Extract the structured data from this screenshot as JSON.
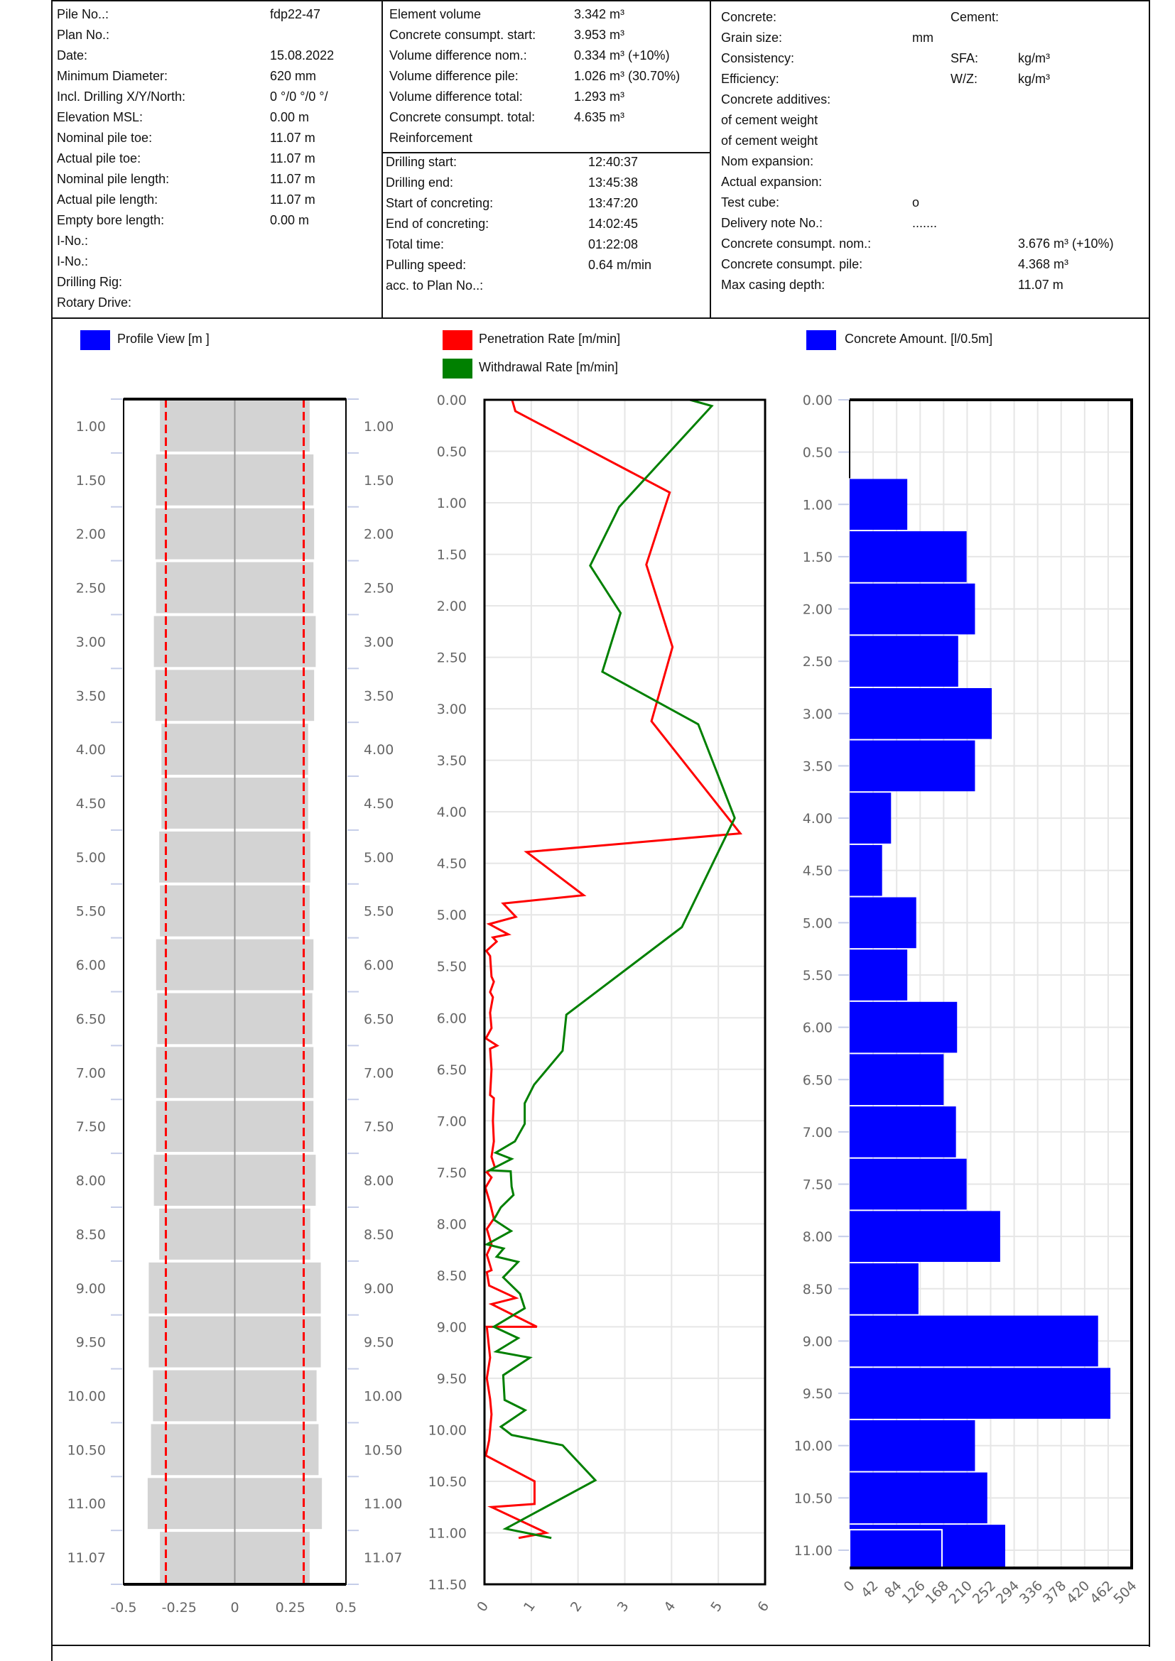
{
  "header": {
    "left": [
      {
        "label": "Pile No..:",
        "value": "fdp22-47"
      },
      {
        "label": "Plan No.:",
        "value": ""
      },
      {
        "label": "Date:",
        "value": "15.08.2022"
      },
      {
        "label": "Minimum Diameter:",
        "value": "620 mm"
      },
      {
        "label": "Incl. Drilling X/Y/North:",
        "value": "0 °/0 °/0 °/"
      },
      {
        "label": "Elevation MSL:",
        "value": "0.00 m"
      },
      {
        "label": "Nominal pile toe:",
        "value": "11.07 m"
      },
      {
        "label": "Actual pile toe:",
        "value": "11.07 m"
      },
      {
        "label": "Nominal pile length:",
        "value": "11.07 m"
      },
      {
        "label": "Actual pile length:",
        "value": "11.07 m"
      },
      {
        "label": "Empty bore length:",
        "value": "0.00 m"
      },
      {
        "label": "I-No.:",
        "value": ""
      },
      {
        "label": "I-No.:",
        "value": ""
      },
      {
        "label": "Drilling Rig:",
        "value": ""
      },
      {
        "label": "Rotary Drive:",
        "value": ""
      }
    ],
    "middle_top": [
      {
        "label": "Element volume",
        "value": "3.342 m³"
      },
      {
        "label": "Concrete consumpt. start:",
        "value": "3.953 m³"
      },
      {
        "label": "Volume difference nom.:",
        "value": "0.334 m³ (+10%)"
      },
      {
        "label": "Volume difference pile:",
        "value": "1.026 m³ (30.70%)"
      },
      {
        "label": "Volume difference total:",
        "value": "1.293 m³"
      },
      {
        "label": "Concrete consumpt. total:",
        "value": "4.635 m³"
      },
      {
        "label": "Reinforcement",
        "value": ""
      }
    ],
    "middle_bottom": [
      {
        "label": "Drilling start:",
        "value": "12:40:37"
      },
      {
        "label": "Drilling end:",
        "value": "13:45:38"
      },
      {
        "label": "Start of concreting:",
        "value": "13:47:20"
      },
      {
        "label": "End of concreting:",
        "value": "14:02:45"
      },
      {
        "label": "Total time:",
        "value": "01:22:08"
      },
      {
        "label": "Pulling speed:",
        "value": "0.64 m/min"
      },
      {
        "label": "acc. to Plan No..:",
        "value": ""
      }
    ],
    "right": [
      {
        "label": "Concrete:",
        "c2": "",
        "c3": "Cement:",
        "c4": ""
      },
      {
        "label": "Grain size:",
        "c2": "mm",
        "c3": "",
        "c4": ""
      },
      {
        "label": "Consistency:",
        "c2": "",
        "c3": "SFA:",
        "c4": "kg/m³"
      },
      {
        "label": "Efficiency:",
        "c2": "",
        "c3": "W/Z:",
        "c4": "kg/m³"
      },
      {
        "label": "Concrete additives:",
        "c2": "",
        "c3": "",
        "c4": ""
      },
      {
        "label": "of cement weight",
        "c2": "",
        "c3": "",
        "c4": ""
      },
      {
        "label": "of cement weight",
        "c2": "",
        "c3": "",
        "c4": ""
      },
      {
        "label": "Nom expansion:",
        "c2": "",
        "c3": "",
        "c4": ""
      },
      {
        "label": "Actual expansion:",
        "c2": "",
        "c3": "",
        "c4": ""
      },
      {
        "label": "Test cube:",
        "c2": "o",
        "c3": "",
        "c4": ""
      },
      {
        "label": "Delivery note No.:",
        "c2": ".......",
        "c3": "",
        "c4": ""
      },
      {
        "label": "Concrete consumpt. nom.:",
        "c2": "",
        "c3": "",
        "c4": "3.676 m³ (+10%)"
      },
      {
        "label": "Concrete consumpt. pile:",
        "c2": "",
        "c3": "",
        "c4": "4.368 m³"
      },
      {
        "label": "Max casing depth:",
        "c2": "",
        "c3": "",
        "c4": "11.07 m"
      }
    ]
  },
  "legends": {
    "profile": {
      "label": "Profile View [m ]",
      "color": "#0000ff"
    },
    "penetration": {
      "label": "Penetration Rate [m/min]",
      "color": "#ff0000"
    },
    "withdrawal": {
      "label": "Withdrawal Rate [m/min]",
      "color": "#008000"
    },
    "concrete": {
      "label": "Concrete Amount. [l/0.5m]",
      "color": "#0000ff"
    }
  },
  "chart_data": [
    {
      "type": "bar",
      "title": "Profile View [m ]",
      "xlim": [
        -0.5,
        0.5
      ],
      "x_ticks": [
        "-0.5",
        "-0.25",
        "0",
        "0.25",
        "0.5"
      ],
      "x_tick_values": [
        -0.5,
        -0.25,
        0,
        0.25,
        0.5
      ],
      "design_radius": 0.31,
      "depth_labels": [
        "1.00",
        "1.50",
        "2.00",
        "2.50",
        "3.00",
        "3.50",
        "4.00",
        "4.50",
        "5.00",
        "5.50",
        "6.00",
        "6.50",
        "7.00",
        "7.50",
        "8.00",
        "8.50",
        "9.00",
        "9.50",
        "10.00",
        "10.50",
        "11.00",
        "11.07"
      ],
      "radius": [
        0.34,
        0.357,
        0.36,
        0.357,
        0.367,
        0.36,
        0.333,
        0.333,
        0.343,
        0.34,
        0.357,
        0.352,
        0.357,
        0.357,
        0.367,
        0.343,
        0.39,
        0.39,
        0.371,
        0.38,
        0.395,
        0.34
      ],
      "fill": "#d3d3d3",
      "design_color": "#ff0000"
    },
    {
      "type": "line",
      "xlim": [
        0,
        6
      ],
      "ylim": [
        0,
        11.5
      ],
      "x_ticks": [
        "0",
        "1",
        "2",
        "3",
        "4",
        "5",
        "6"
      ],
      "y_ticks": [
        "0.00",
        "0.50",
        "1.00",
        "1.50",
        "2.00",
        "2.50",
        "3.00",
        "3.50",
        "4.00",
        "4.50",
        "5.00",
        "5.50",
        "6.00",
        "6.50",
        "7.00",
        "7.50",
        "8.00",
        "8.50",
        "9.00",
        "9.50",
        "10.00",
        "10.50",
        "11.00",
        "11.50"
      ],
      "series": [
        {
          "name": "Penetration Rate [m/min]",
          "color": "#ff0000",
          "points": [
            [
              0.59,
              0
            ],
            [
              0.66,
              0.11
            ],
            [
              3.96,
              0.9
            ],
            [
              3.46,
              1.6
            ],
            [
              4.02,
              2.4
            ],
            [
              3.57,
              3.12
            ],
            [
              5.47,
              4.21
            ],
            [
              0.9,
              4.39
            ],
            [
              2.12,
              4.81
            ],
            [
              0.4,
              4.89
            ],
            [
              0.67,
              5.02
            ],
            [
              0.1,
              5.09
            ],
            [
              0.51,
              5.19
            ],
            [
              0.18,
              5.22
            ],
            [
              0.26,
              5.26
            ],
            [
              0.04,
              5.35
            ],
            [
              0.12,
              5.4
            ],
            [
              0.15,
              5.6
            ],
            [
              0.2,
              5.65
            ],
            [
              0.12,
              5.75
            ],
            [
              0.18,
              5.8
            ],
            [
              0.12,
              5.95
            ],
            [
              0.15,
              6.1
            ],
            [
              0.03,
              6.2
            ],
            [
              0.27,
              6.27
            ],
            [
              0.12,
              6.3
            ],
            [
              0.15,
              6.5
            ],
            [
              0.12,
              6.75
            ],
            [
              0.2,
              6.78
            ],
            [
              0.18,
              7.0
            ],
            [
              0.2,
              7.2
            ],
            [
              0.15,
              7.35
            ],
            [
              0.22,
              7.45
            ],
            [
              0.05,
              7.5
            ],
            [
              0.15,
              7.55
            ],
            [
              0.02,
              7.65
            ],
            [
              0.12,
              7.8
            ],
            [
              0.2,
              7.95
            ],
            [
              0.05,
              8.05
            ],
            [
              0.15,
              8.2
            ],
            [
              0.05,
              8.3
            ],
            [
              0.15,
              8.45
            ],
            [
              0.05,
              8.47
            ],
            [
              0.1,
              8.6
            ],
            [
              0.67,
              8.72
            ],
            [
              0.15,
              8.78
            ],
            [
              1.12,
              9.0
            ],
            [
              0.05,
              9.0
            ],
            [
              0.12,
              9.3
            ],
            [
              0.05,
              9.5
            ],
            [
              0.12,
              9.7
            ],
            [
              0.15,
              9.85
            ],
            [
              0.1,
              10.1
            ],
            [
              0.03,
              10.25
            ],
            [
              1.07,
              10.5
            ],
            [
              1.07,
              10.72
            ],
            [
              0.15,
              10.75
            ],
            [
              1.32,
              11.0
            ],
            [
              0.73,
              11.05
            ]
          ]
        },
        {
          "name": "Withdrawal Rate [m/min]",
          "color": "#008000",
          "points": [
            [
              4.39,
              0
            ],
            [
              4.86,
              0.06
            ],
            [
              2.88,
              1.04
            ],
            [
              2.26,
              1.61
            ],
            [
              2.91,
              2.07
            ],
            [
              2.52,
              2.64
            ],
            [
              4.57,
              3.15
            ],
            [
              5.35,
              4.06
            ],
            [
              4.22,
              5.12
            ],
            [
              1.75,
              5.97
            ],
            [
              1.67,
              6.32
            ],
            [
              1.06,
              6.65
            ],
            [
              0.86,
              6.83
            ],
            [
              0.86,
              7.03
            ],
            [
              0.65,
              7.2
            ],
            [
              0.24,
              7.31
            ],
            [
              0.58,
              7.37
            ],
            [
              0.11,
              7.48
            ],
            [
              0.56,
              7.49
            ],
            [
              0.58,
              7.64
            ],
            [
              0.62,
              7.72
            ],
            [
              0.35,
              7.84
            ],
            [
              0.2,
              7.96
            ],
            [
              0.57,
              8.07
            ],
            [
              0.05,
              8.2
            ],
            [
              0.41,
              8.24
            ],
            [
              0.26,
              8.32
            ],
            [
              0.72,
              8.37
            ],
            [
              0.4,
              8.52
            ],
            [
              0.76,
              8.68
            ],
            [
              0.86,
              8.82
            ],
            [
              0.2,
              9.0
            ],
            [
              0.72,
              9.11
            ],
            [
              0.25,
              9.24
            ],
            [
              0.97,
              9.3
            ],
            [
              0.4,
              9.47
            ],
            [
              0.43,
              9.71
            ],
            [
              0.87,
              9.81
            ],
            [
              0.35,
              9.97
            ],
            [
              0.58,
              10.05
            ],
            [
              1.67,
              10.15
            ],
            [
              2.37,
              10.49
            ],
            [
              0.45,
              10.96
            ],
            [
              1.43,
              11.05
            ]
          ]
        }
      ]
    },
    {
      "type": "bar",
      "title": "Concrete Amount. [l/0.5m]",
      "xlim": [
        0,
        504
      ],
      "ylim": [
        0,
        11.17
      ],
      "x_ticks": [
        "0",
        "42",
        "84",
        "126",
        "168",
        "210",
        "252",
        "294",
        "336",
        "378",
        "420",
        "462",
        "504"
      ],
      "y_ticks": [
        "0.00",
        "0.50",
        "1.00",
        "1.50",
        "2.00",
        "2.50",
        "3.00",
        "3.50",
        "4.00",
        "4.50",
        "5.00",
        "5.50",
        "6.00",
        "6.50",
        "7.00",
        "7.50",
        "8.00",
        "8.50",
        "9.00",
        "9.50",
        "10.00",
        "10.50",
        "11.00"
      ],
      "bar_start_depths": [
        0.75,
        1.25,
        1.75,
        2.25,
        2.75,
        3.25,
        3.75,
        4.25,
        4.75,
        5.25,
        5.75,
        6.25,
        6.75,
        7.25,
        7.75,
        8.25,
        8.75,
        9.25,
        9.75,
        10.25,
        10.75
      ],
      "values": [
        103,
        209,
        224,
        194,
        254,
        224,
        74,
        58,
        119,
        103,
        192,
        168,
        190,
        209,
        269,
        123,
        444,
        466,
        224,
        246,
        278
      ],
      "last_segment_outline": 165,
      "color": "#0000ff"
    }
  ]
}
